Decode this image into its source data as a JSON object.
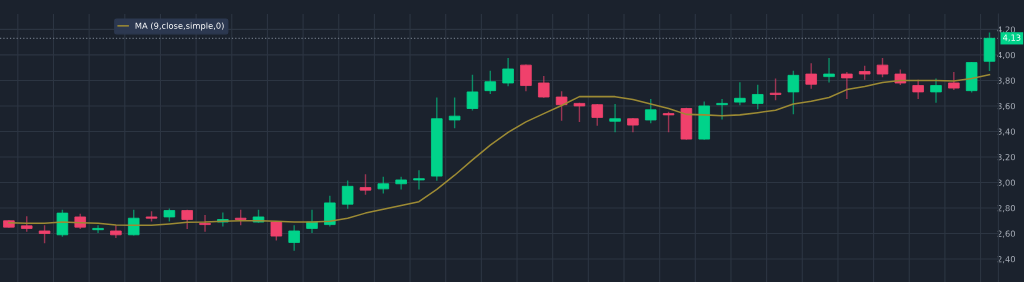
{
  "chart_data": {
    "type": "candlestick",
    "categories": [
      null,
      null,
      null,
      null,
      null,
      null,
      null,
      null,
      null,
      null,
      null,
      null,
      null,
      null,
      null,
      null,
      null,
      null,
      null,
      null,
      null,
      null,
      null,
      null,
      null,
      null,
      null,
      null,
      null,
      null,
      null,
      null,
      null,
      null,
      null,
      null,
      null,
      null,
      null,
      null,
      null,
      null,
      null,
      null,
      null,
      null,
      null,
      null,
      null,
      null,
      null,
      null,
      null,
      null,
      null,
      null
    ],
    "ohlc": [
      [
        2.7,
        2.7,
        2.65,
        2.65
      ],
      [
        2.66,
        2.73,
        2.62,
        2.64
      ],
      [
        2.62,
        2.66,
        2.53,
        2.6
      ],
      [
        2.59,
        2.78,
        2.58,
        2.76
      ],
      [
        2.73,
        2.75,
        2.64,
        2.65
      ],
      [
        2.63,
        2.66,
        2.61,
        2.64
      ],
      [
        2.62,
        2.66,
        2.57,
        2.59
      ],
      [
        2.59,
        2.78,
        2.59,
        2.72
      ],
      [
        2.73,
        2.77,
        2.7,
        2.72
      ],
      [
        2.73,
        2.79,
        2.7,
        2.78
      ],
      [
        2.78,
        2.78,
        2.64,
        2.71
      ],
      [
        2.68,
        2.74,
        2.62,
        2.67
      ],
      [
        2.69,
        2.76,
        2.66,
        2.71
      ],
      [
        2.72,
        2.78,
        2.67,
        2.71
      ],
      [
        2.69,
        2.78,
        2.69,
        2.73
      ],
      [
        2.69,
        2.69,
        2.55,
        2.58
      ],
      [
        2.53,
        2.66,
        2.47,
        2.62
      ],
      [
        2.64,
        2.78,
        2.61,
        2.69
      ],
      [
        2.67,
        2.89,
        2.66,
        2.84
      ],
      [
        2.83,
        3.01,
        2.8,
        2.97
      ],
      [
        2.96,
        3.06,
        2.91,
        2.94
      ],
      [
        2.95,
        3.04,
        2.92,
        2.99
      ],
      [
        2.99,
        3.04,
        2.95,
        3.02
      ],
      [
        3.02,
        3.09,
        2.95,
        3.03
      ],
      [
        3.05,
        3.66,
        3.02,
        3.5
      ],
      [
        3.49,
        3.66,
        3.43,
        3.52
      ],
      [
        3.58,
        3.84,
        3.57,
        3.71
      ],
      [
        3.72,
        3.87,
        3.7,
        3.79
      ],
      [
        3.78,
        3.97,
        3.76,
        3.89
      ],
      [
        3.92,
        3.92,
        3.72,
        3.76
      ],
      [
        3.78,
        3.83,
        3.67,
        3.67
      ],
      [
        3.67,
        3.71,
        3.49,
        3.61
      ],
      [
        3.62,
        3.62,
        3.48,
        3.6
      ],
      [
        3.61,
        3.61,
        3.45,
        3.51
      ],
      [
        3.48,
        3.61,
        3.4,
        3.5
      ],
      [
        3.5,
        3.5,
        3.4,
        3.45
      ],
      [
        3.49,
        3.65,
        3.47,
        3.57
      ],
      [
        3.54,
        3.55,
        3.4,
        3.53
      ],
      [
        3.58,
        3.58,
        3.34,
        3.34
      ],
      [
        3.34,
        3.63,
        3.34,
        3.6
      ],
      [
        3.61,
        3.65,
        3.5,
        3.62
      ],
      [
        3.63,
        3.78,
        3.61,
        3.66
      ],
      [
        3.62,
        3.76,
        3.58,
        3.69
      ],
      [
        3.7,
        3.81,
        3.65,
        3.69
      ],
      [
        3.71,
        3.87,
        3.54,
        3.84
      ],
      [
        3.85,
        3.93,
        3.74,
        3.77
      ],
      [
        3.83,
        3.97,
        3.79,
        3.85
      ],
      [
        3.85,
        3.86,
        3.66,
        3.82
      ],
      [
        3.87,
        3.91,
        3.81,
        3.85
      ],
      [
        3.92,
        3.97,
        3.83,
        3.85
      ],
      [
        3.85,
        3.88,
        3.77,
        3.78
      ],
      [
        3.76,
        3.8,
        3.66,
        3.71
      ],
      [
        3.71,
        3.81,
        3.63,
        3.76
      ],
      [
        3.78,
        3.86,
        3.73,
        3.74
      ],
      [
        3.72,
        3.94,
        3.71,
        3.94
      ],
      [
        3.95,
        4.17,
        3.88,
        4.13
      ]
    ],
    "colors": [
      "#f0416c",
      "#f0416c",
      "#f0416c",
      "#00d38a",
      "#f0416c",
      "#00d38a",
      "#f0416c",
      "#00d38a",
      "#f0416c",
      "#00d38a",
      "#f0416c",
      "#f0416c",
      "#00d38a",
      "#f0416c",
      "#00d38a",
      "#f0416c",
      "#00d38a",
      "#00d38a",
      "#00d38a",
      "#00d38a",
      "#f0416c",
      "#00d38a",
      "#00d38a",
      "#00d38a",
      "#00d38a",
      "#00d38a",
      "#00d38a",
      "#00d38a",
      "#00d38a",
      "#f0416c",
      "#f0416c",
      "#f0416c",
      "#f0416c",
      "#f0416c",
      "#00d38a",
      "#f0416c",
      "#00d38a",
      "#f0416c",
      "#f0416c",
      "#00d38a",
      "#00d38a",
      "#00d38a",
      "#00d38a",
      "#f0416c",
      "#00d38a",
      "#f0416c",
      "#00d38a",
      "#f0416c",
      "#f0416c",
      "#f0416c",
      "#f0416c",
      "#f0416c",
      "#00d38a",
      "#f0416c",
      "#00d38a",
      "#00d38a"
    ],
    "series": [
      {
        "name": "MA (9,close,simple,0)",
        "type": "line",
        "color": "#9c8a34",
        "values": [
          2.685,
          2.68,
          2.68,
          2.69,
          2.685,
          2.68,
          2.667,
          2.665,
          2.665,
          2.675,
          2.688,
          2.69,
          2.697,
          2.7,
          2.7,
          2.697,
          2.69,
          2.69,
          2.697,
          2.72,
          2.76,
          2.79,
          2.82,
          2.85,
          2.946,
          3.057,
          3.177,
          3.293,
          3.393,
          3.475,
          3.54,
          3.604,
          3.673,
          3.673,
          3.673,
          3.65,
          3.616,
          3.58,
          3.534,
          3.53,
          3.524,
          3.53,
          3.547,
          3.567,
          3.616,
          3.636,
          3.666,
          3.728,
          3.753,
          3.783,
          3.8,
          3.8,
          3.8,
          3.795,
          3.815,
          3.845
        ]
      }
    ],
    "ylim": [
      2.22,
      4.32
    ],
    "yticks": [
      {
        "value": 2.4,
        "label": "2,40"
      },
      {
        "value": 2.6,
        "label": "2,60"
      },
      {
        "value": 2.8,
        "label": "2,80"
      },
      {
        "value": 3.0,
        "label": "3,00"
      },
      {
        "value": 3.2,
        "label": "3,20"
      },
      {
        "value": 3.4,
        "label": "3,40"
      },
      {
        "value": 3.6,
        "label": "3,60"
      },
      {
        "value": 3.8,
        "label": "3,80"
      },
      {
        "value": 4.0,
        "label": "4,00"
      },
      {
        "value": 4.2,
        "label": "4,20"
      }
    ],
    "ref_lines": [
      {
        "axis": "y",
        "value": 4.13,
        "label": "4,13",
        "color": "#6a7380",
        "line_style": "dotted"
      }
    ],
    "grid": true,
    "legend": "top left",
    "tick_labels": "y"
  }
}
